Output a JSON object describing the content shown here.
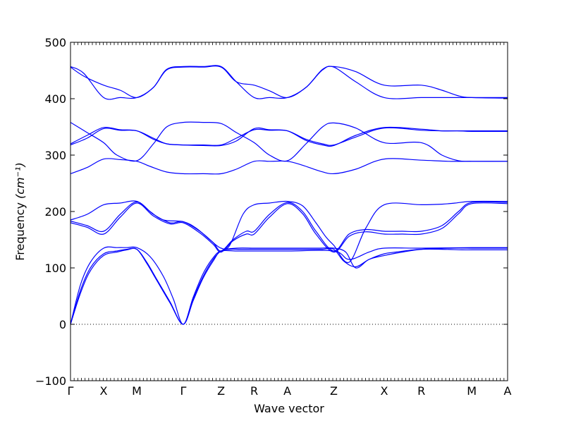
{
  "chart_data": {
    "type": "line",
    "xlabel": "Wave vector",
    "ylabel": "Frequency",
    "ylabel_unit": "(cm⁻¹)",
    "ylim": [
      -100,
      500
    ],
    "yticks": [
      -100,
      0,
      100,
      200,
      300,
      400,
      500
    ],
    "grid": false,
    "zero_line": 0,
    "line_color": "#0000ff",
    "path_points": [
      "Γ",
      "X",
      "M",
      "Γ",
      "Z",
      "R",
      "A",
      "Z",
      "X",
      "R",
      "M",
      "A"
    ],
    "path_positions": [
      0,
      0.5,
      1.0,
      1.7,
      2.27,
      2.77,
      3.27,
      3.97,
      4.73,
      5.29,
      6.05,
      6.59
    ],
    "bands": [
      {
        "name": "",
        "x": [
          0,
          0.15,
          0.3,
          0.5,
          0.7,
          0.85,
          1.0,
          1.15,
          1.3,
          1.5,
          1.7,
          1.85,
          2.0,
          2.15,
          2.27,
          2.4,
          2.55,
          2.7,
          2.77,
          2.9,
          3.05,
          3.2,
          3.27,
          3.45,
          3.62,
          3.8,
          3.97,
          4.12,
          4.3,
          4.5,
          4.73,
          4.9,
          5.1,
          5.29,
          5.6,
          5.9,
          6.05,
          6.3,
          6.59
        ],
        "y": [
          0,
          60,
          100,
          125,
          130,
          133,
          133,
          110,
          80,
          40,
          0,
          45,
          85,
          115,
          130,
          133,
          133,
          133,
          133,
          133,
          133,
          133,
          133,
          133,
          133,
          133,
          133,
          112,
          102,
          115,
          125,
          128,
          131,
          133,
          133,
          132,
          132,
          132,
          132
        ]
      },
      {
        "name": "",
        "x": [
          0,
          0.15,
          0.3,
          0.5,
          0.7,
          0.85,
          1.0,
          1.15,
          1.3,
          1.5,
          1.7,
          1.85,
          2.0,
          2.15,
          2.27,
          2.5,
          2.77,
          3.0,
          3.27,
          3.5,
          3.75,
          3.97,
          4.15,
          4.3,
          4.5,
          4.73,
          5.0,
          5.29,
          5.7,
          6.05,
          6.59
        ],
        "y": [
          0,
          55,
          95,
          122,
          128,
          132,
          133,
          108,
          78,
          38,
          0,
          42,
          82,
          112,
          130,
          135,
          135,
          135,
          135,
          135,
          135,
          135,
          128,
          100,
          115,
          122,
          128,
          133,
          135,
          135,
          135
        ]
      },
      {
        "name": "",
        "x": [
          0,
          0.15,
          0.3,
          0.5,
          0.7,
          0.85,
          1.0,
          1.2,
          1.4,
          1.55,
          1.7,
          1.85,
          2.0,
          2.15,
          2.27,
          2.5,
          2.77,
          3.27,
          3.97,
          4.2,
          4.5,
          4.73,
          5.29,
          6.05,
          6.59
        ],
        "y": [
          0,
          70,
          110,
          135,
          136,
          136,
          136,
          120,
          85,
          45,
          0,
          48,
          90,
          118,
          130,
          130,
          130,
          130,
          130,
          115,
          128,
          135,
          135,
          136,
          136
        ]
      },
      {
        "name": "",
        "x": [
          0,
          0.25,
          0.5,
          0.75,
          1.0,
          1.2,
          1.4,
          1.7,
          1.9,
          2.1,
          2.27,
          2.4,
          2.6,
          2.77,
          3.0,
          3.27,
          3.5,
          3.7,
          3.85,
          3.97,
          4.2,
          4.45,
          4.73,
          5.29,
          5.6,
          5.8,
          6.05,
          6.59
        ],
        "y": [
          185,
          195,
          212,
          215,
          218,
          200,
          185,
          182,
          170,
          150,
          135,
          140,
          195,
          212,
          215,
          218,
          210,
          180,
          155,
          140,
          110,
          170,
          212,
          212,
          213,
          215,
          218,
          218
        ]
      },
      {
        "name": "",
        "x": [
          0,
          0.25,
          0.5,
          0.75,
          1.0,
          1.25,
          1.5,
          1.7,
          1.95,
          2.15,
          2.27,
          2.45,
          2.65,
          2.77,
          3.0,
          3.27,
          3.5,
          3.7,
          3.97,
          4.2,
          4.45,
          4.73,
          5.0,
          5.29,
          5.6,
          5.85,
          6.05,
          6.59
        ],
        "y": [
          183,
          175,
          165,
          195,
          217,
          195,
          180,
          182,
          165,
          145,
          130,
          150,
          165,
          165,
          195,
          216,
          200,
          165,
          130,
          160,
          168,
          165,
          165,
          165,
          175,
          200,
          216,
          216
        ]
      },
      {
        "name": "",
        "x": [
          0,
          0.25,
          0.5,
          0.75,
          1.0,
          1.25,
          1.5,
          1.7,
          1.95,
          2.15,
          2.27,
          2.45,
          2.65,
          2.77,
          3.0,
          3.27,
          3.5,
          3.7,
          3.97,
          4.2,
          4.45,
          4.73,
          5.0,
          5.29,
          5.6,
          5.85,
          6.05,
          6.59
        ],
        "y": [
          180,
          172,
          160,
          190,
          215,
          192,
          178,
          180,
          162,
          142,
          128,
          148,
          160,
          160,
          190,
          214,
          196,
          160,
          128,
          156,
          164,
          160,
          160,
          160,
          170,
          196,
          214,
          214
        ]
      },
      {
        "name": "",
        "x": [
          0,
          0.25,
          0.5,
          0.75,
          1.0,
          1.2,
          1.45,
          1.7,
          2.0,
          2.27,
          2.5,
          2.77,
          3.0,
          3.27,
          3.5,
          3.75,
          3.97,
          4.3,
          4.73,
          5.29,
          5.7,
          6.05,
          6.59
        ],
        "y": [
          267,
          278,
          293,
          292,
          289,
          280,
          270,
          267,
          267,
          267,
          275,
          289,
          289,
          289,
          282,
          272,
          267,
          275,
          293,
          291,
          289,
          289,
          289
        ]
      },
      {
        "name": "",
        "x": [
          0,
          0.25,
          0.5,
          0.7,
          1.0,
          1.25,
          1.45,
          1.7,
          2.0,
          2.27,
          2.5,
          2.77,
          3.0,
          3.27,
          3.55,
          3.8,
          3.97,
          4.3,
          4.73,
          5.29,
          5.6,
          5.85,
          6.05,
          6.59
        ],
        "y": [
          358,
          340,
          322,
          300,
          290,
          320,
          350,
          358,
          358,
          356,
          340,
          322,
          300,
          290,
          320,
          350,
          357,
          348,
          322,
          322,
          300,
          290,
          289,
          289
        ]
      },
      {
        "name": "",
        "x": [
          0,
          0.25,
          0.5,
          0.75,
          1.0,
          1.25,
          1.45,
          1.7,
          2.0,
          2.27,
          2.5,
          2.77,
          3.0,
          3.27,
          3.55,
          3.8,
          3.97,
          4.3,
          4.73,
          5.29,
          5.6,
          5.85,
          6.05,
          6.59
        ],
        "y": [
          318,
          330,
          347,
          344,
          343,
          330,
          320,
          318,
          318,
          318,
          330,
          345,
          344,
          343,
          328,
          320,
          318,
          332,
          348,
          344,
          343,
          343,
          343,
          343
        ]
      },
      {
        "name": "",
        "x": [
          0,
          0.25,
          0.5,
          0.75,
          1.0,
          1.25,
          1.45,
          1.7,
          2.0,
          2.27,
          2.5,
          2.77,
          3.0,
          3.27,
          3.55,
          3.8,
          3.97,
          4.3,
          4.73,
          5.29,
          5.6,
          5.85,
          6.05,
          6.59
        ],
        "y": [
          320,
          335,
          349,
          345,
          343,
          328,
          320,
          318,
          317,
          317,
          325,
          347,
          345,
          343,
          326,
          318,
          317,
          335,
          349,
          346,
          343,
          343,
          342,
          342
        ]
      },
      {
        "name": "",
        "x": [
          0,
          0.2,
          0.5,
          0.75,
          1.0,
          1.25,
          1.45,
          1.7,
          2.0,
          2.27,
          2.5,
          2.77,
          3.0,
          3.27,
          3.55,
          3.8,
          3.97,
          4.3,
          4.73,
          5.29,
          5.6,
          5.85,
          6.05,
          6.59
        ],
        "y": [
          457,
          445,
          402,
          402,
          402,
          420,
          452,
          457,
          457,
          457,
          430,
          402,
          402,
          402,
          420,
          452,
          457,
          448,
          424,
          424,
          415,
          405,
          402,
          401
        ]
      },
      {
        "name": "",
        "x": [
          0,
          0.2,
          0.5,
          0.75,
          1.0,
          1.25,
          1.45,
          1.7,
          2.0,
          2.27,
          2.5,
          2.77,
          3.0,
          3.27,
          3.55,
          3.8,
          3.97,
          4.3,
          4.73,
          5.29,
          5.6,
          5.85,
          6.05,
          6.59
        ],
        "y": [
          456,
          440,
          424,
          415,
          402,
          420,
          451,
          456,
          456,
          456,
          430,
          424,
          414,
          402,
          420,
          451,
          456,
          430,
          402,
          402,
          402,
          402,
          402,
          402
        ]
      }
    ]
  }
}
